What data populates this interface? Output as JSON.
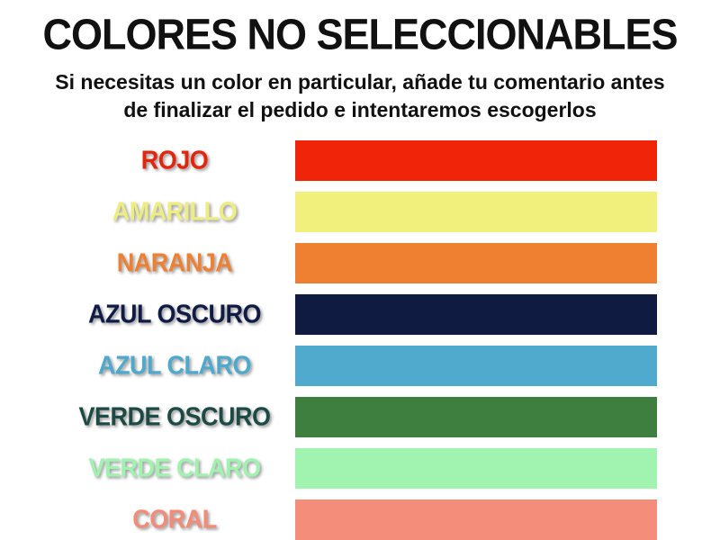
{
  "header": {
    "title": "COLORES NO SELECCIONABLES",
    "subtitle_line1": "Si necesitas un color en particular, añade tu comentario antes",
    "subtitle_line2": "de finalizar el pedido e intentaremos escogerlos"
  },
  "colors": [
    {
      "label": "ROJO",
      "label_color": "#e2250c",
      "swatch_color": "#f02408"
    },
    {
      "label": "AMARILLO",
      "label_color": "#eded82",
      "swatch_color": "#f1f07d"
    },
    {
      "label": "NARANJA",
      "label_color": "#ee8034",
      "swatch_color": "#f08031"
    },
    {
      "label": "AZUL OSCURO",
      "label_color": "#101c45",
      "swatch_color": "#0f1b41"
    },
    {
      "label": "AZUL CLARO",
      "label_color": "#4fa9cd",
      "swatch_color": "#4faace"
    },
    {
      "label": "VERDE OSCURO",
      "label_color": "#1d4a44",
      "swatch_color": "#3e7e3e"
    },
    {
      "label": "VERDE CLARO",
      "label_color": "#9ff3af",
      "swatch_color": "#a0f4b0"
    },
    {
      "label": "CORAL",
      "label_color": "#f28b77",
      "swatch_color": "#f48d79"
    }
  ],
  "page": {
    "background_color": "#ffffff",
    "text_color": "#111111"
  }
}
